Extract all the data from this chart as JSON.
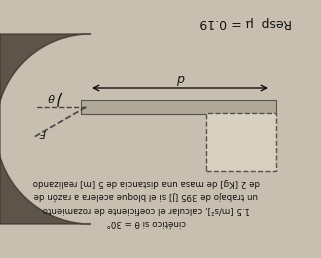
{
  "bg_color": "#c8bfb0",
  "title_text": "Resp  μ = 0.19",
  "line1": "de 2 [Kg] de masa una distancia de 5 [m] realizando",
  "line2": "un trabajo de 395 [J] si el bloque acelera a razón de",
  "line3": "1.5 [m/s²], calcular el coeficiente de rozamiento",
  "line4": "cinético si θ = 30°",
  "label_d": "d",
  "label_theta": "θ",
  "label_F": "F",
  "text_color": "#111111",
  "surface_color": "#b0a898",
  "surface_edge": "#555545",
  "block_fill": "#d8d0c0",
  "block_edge": "#555545",
  "arrow_color": "#111111",
  "dashed_color": "#444444",
  "shadow_color": "#3a3028",
  "shadow_alpha": 0.75,
  "figsize": [
    3.21,
    2.58
  ],
  "dpi": 100
}
